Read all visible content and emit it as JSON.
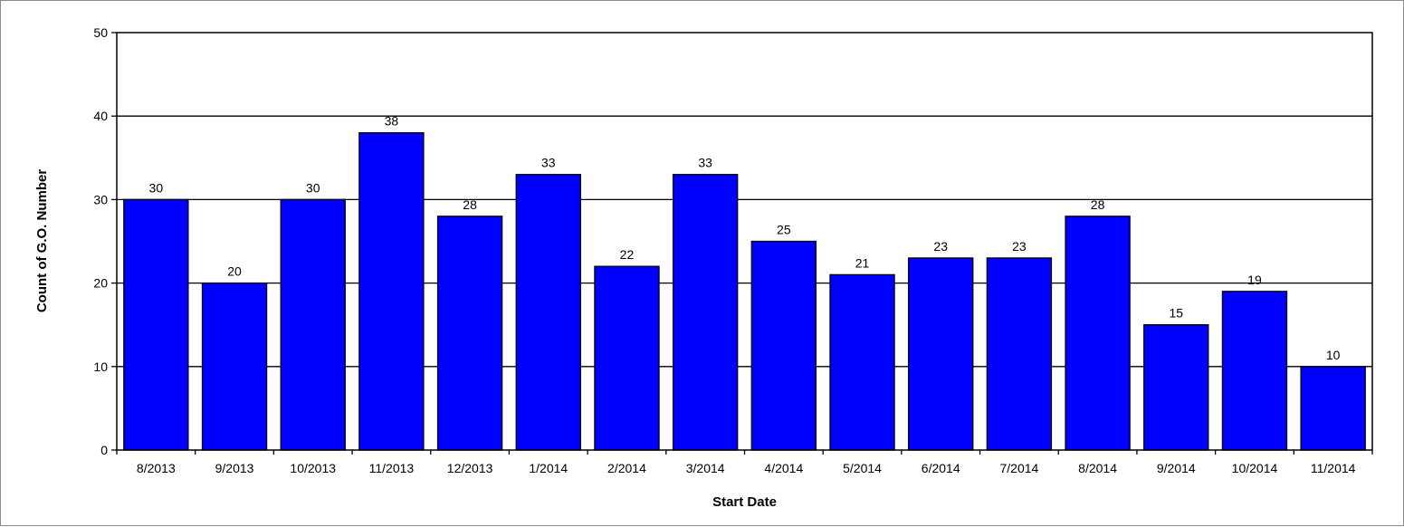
{
  "chart_data": {
    "type": "bar",
    "title": "",
    "xlabel": "Start Date",
    "ylabel": "Count of G.O. Number",
    "ylim": [
      0,
      50
    ],
    "yticks": [
      0,
      10,
      20,
      30,
      40,
      50
    ],
    "grid": true,
    "legend": "none",
    "bar_color": "#0000FF",
    "categories": [
      "8/2013",
      "9/2013",
      "10/2013",
      "11/2013",
      "12/2013",
      "1/2014",
      "2/2014",
      "3/2014",
      "4/2014",
      "5/2014",
      "6/2014",
      "7/2014",
      "8/2014",
      "9/2014",
      "10/2014",
      "11/2014"
    ],
    "values": [
      30,
      20,
      30,
      38,
      28,
      33,
      22,
      33,
      25,
      21,
      23,
      23,
      28,
      15,
      19,
      10
    ],
    "data_labels": [
      "30",
      "20",
      "30",
      "38",
      "28",
      "33",
      "22",
      "33",
      "25",
      "21",
      "23",
      "23",
      "28",
      "15",
      "19",
      "10"
    ]
  }
}
